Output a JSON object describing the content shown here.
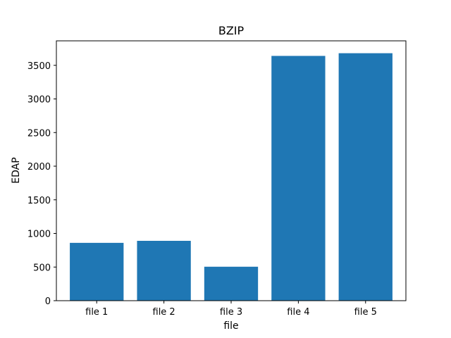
{
  "chart_data": {
    "type": "bar",
    "title": "BZIP",
    "xlabel": "file",
    "ylabel": "EDAP",
    "categories": [
      "file 1",
      "file 2",
      "file 3",
      "file 4",
      "file 5"
    ],
    "values": [
      860,
      890,
      505,
      3640,
      3680
    ],
    "ylim": [
      0,
      3864
    ],
    "yticks": [
      0,
      500,
      1000,
      1500,
      2000,
      2500,
      3000,
      3500
    ],
    "grid": false,
    "legend": "none",
    "colors": {
      "bar": "#1f77b4",
      "axis": "#000000",
      "background": "#ffffff"
    }
  }
}
